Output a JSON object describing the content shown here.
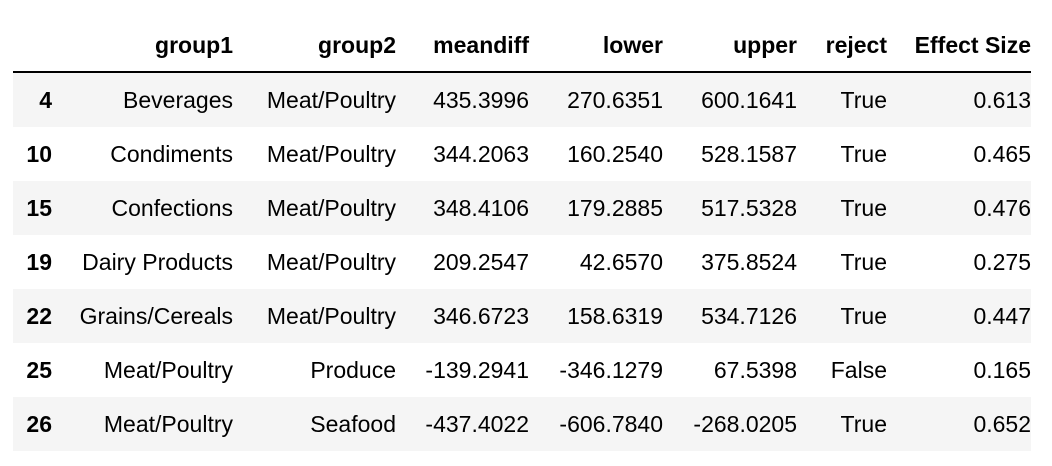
{
  "table": {
    "columns": [
      "",
      "group1",
      "group2",
      "meandiff",
      "lower",
      "upper",
      "reject",
      "Effect Size"
    ],
    "rows": [
      {
        "index": "4",
        "group1": "Beverages",
        "group2": "Meat/Poultry",
        "meandiff": "435.3996",
        "lower": "270.6351",
        "upper": "600.1641",
        "reject": "True",
        "effect": "0.613"
      },
      {
        "index": "10",
        "group1": "Condiments",
        "group2": "Meat/Poultry",
        "meandiff": "344.2063",
        "lower": "160.2540",
        "upper": "528.1587",
        "reject": "True",
        "effect": "0.465"
      },
      {
        "index": "15",
        "group1": "Confections",
        "group2": "Meat/Poultry",
        "meandiff": "348.4106",
        "lower": "179.2885",
        "upper": "517.5328",
        "reject": "True",
        "effect": "0.476"
      },
      {
        "index": "19",
        "group1": "Dairy Products",
        "group2": "Meat/Poultry",
        "meandiff": "209.2547",
        "lower": "42.6570",
        "upper": "375.8524",
        "reject": "True",
        "effect": "0.275"
      },
      {
        "index": "22",
        "group1": "Grains/Cereals",
        "group2": "Meat/Poultry",
        "meandiff": "346.6723",
        "lower": "158.6319",
        "upper": "534.7126",
        "reject": "True",
        "effect": "0.447"
      },
      {
        "index": "25",
        "group1": "Meat/Poultry",
        "group2": "Produce",
        "meandiff": "-139.2941",
        "lower": "-346.1279",
        "upper": "67.5398",
        "reject": "False",
        "effect": "0.165"
      },
      {
        "index": "26",
        "group1": "Meat/Poultry",
        "group2": "Seafood",
        "meandiff": "-437.4022",
        "lower": "-606.7840",
        "upper": "-268.0205",
        "reject": "True",
        "effect": "0.652"
      }
    ]
  }
}
